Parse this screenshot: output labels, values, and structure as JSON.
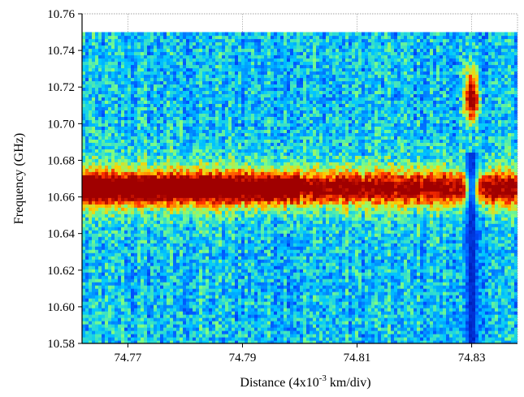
{
  "chart_data": {
    "type": "heatmap",
    "title": "",
    "xlabel": "Distance (4x10^-3 km/div)",
    "xlabel_parts": {
      "before": "Distance (4x10",
      "superscript": "-3",
      "after": " km/div)"
    },
    "ylabel": "Frequency (GHz)",
    "x_ticks": [
      74.77,
      74.79,
      74.81,
      74.83
    ],
    "x_tick_labels": [
      "74.77",
      "74.79",
      "74.81",
      "74.83"
    ],
    "xlim": [
      74.762,
      74.838
    ],
    "y_ticks": [
      10.58,
      10.6,
      10.62,
      10.64,
      10.66,
      10.68,
      10.7,
      10.72,
      10.74,
      10.76
    ],
    "y_tick_labels": [
      "10.58",
      "10.60",
      "10.62",
      "10.64",
      "10.66",
      "10.68",
      "10.70",
      "10.72",
      "10.74",
      "10.76"
    ],
    "ylim": [
      10.58,
      10.76
    ],
    "data_y_range": [
      10.58,
      10.75
    ],
    "colormap": [
      "#00008f",
      "#0050ff",
      "#00c8ff",
      "#80ff80",
      "#ffd000",
      "#ff3000",
      "#a00000"
    ],
    "grid": true,
    "legend": "none",
    "features": {
      "main_peak_frequency": 10.665,
      "main_peak_x_range": [
        74.762,
        74.838
      ],
      "anomaly_x": 74.83,
      "anomaly_hot_frequency": 10.715,
      "anomaly_cold_frequency_range": [
        10.58,
        10.685
      ]
    }
  }
}
